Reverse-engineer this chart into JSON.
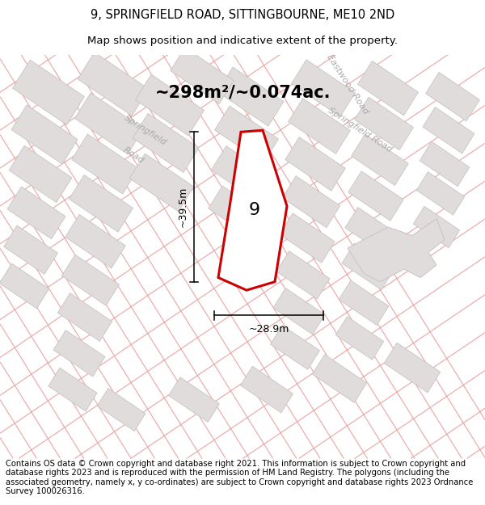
{
  "title_line1": "9, SPRINGFIELD ROAD, SITTINGBOURNE, ME10 2ND",
  "title_line2": "Map shows position and indicative extent of the property.",
  "area_text": "~298m²/~0.074ac.",
  "label_9": "9",
  "dim_vertical": "~39.5m",
  "dim_horizontal": "~28.9m",
  "footer_text": "Contains OS data © Crown copyright and database right 2021. This information is subject to Crown copyright and database rights 2023 and is reproduced with the permission of HM Land Registry. The polygons (including the associated geometry, namely x, y co-ordinates) are subject to Crown copyright and database rights 2023 Ordnance Survey 100026316.",
  "bg_color": "#ffffff",
  "map_bg": "#f8f8f8",
  "building_fill": "#e0dcdc",
  "building_edge": "#c8c4c4",
  "pink_line_color": "#e8a0a0",
  "red_poly_color": "#cc0000",
  "title_fontsize": 10.5,
  "subtitle_fontsize": 9.5,
  "area_fontsize": 15,
  "label_fontsize": 16,
  "dim_fontsize": 9,
  "footer_fontsize": 7.2,
  "road_label_color": "#aaaaaa",
  "road_label_size": 8
}
